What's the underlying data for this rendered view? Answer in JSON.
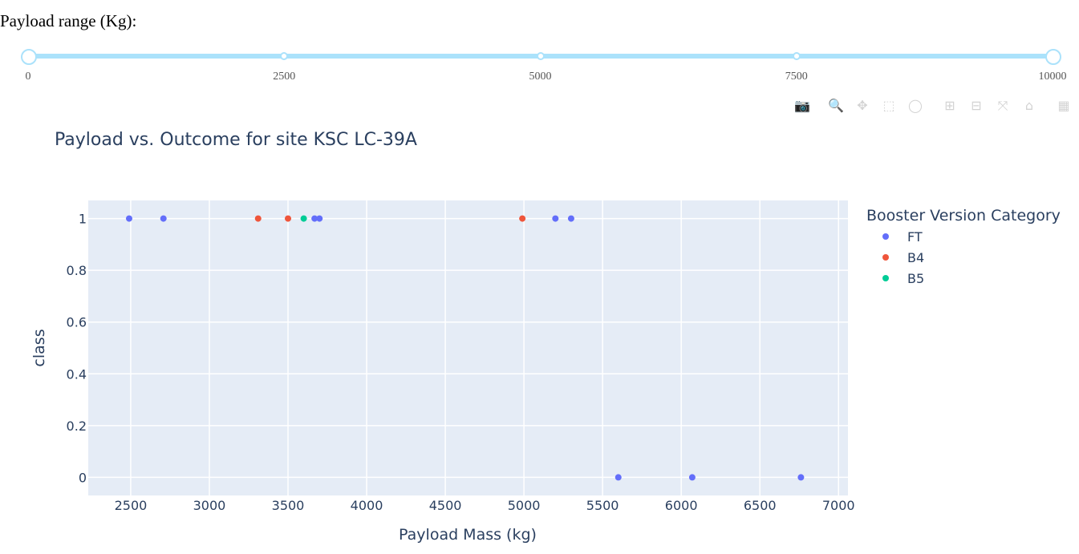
{
  "slider": {
    "label": "Payload range (Kg):",
    "min": 0,
    "max": 10000,
    "value": [
      0,
      10000
    ],
    "marks": [
      "0",
      "2500",
      "5000",
      "7500",
      "10000"
    ],
    "mark_values": [
      0,
      2500,
      5000,
      7500,
      10000
    ],
    "track_color": "#abe2fb"
  },
  "modebar": {
    "buttons": [
      {
        "name": "camera-icon",
        "glyph": "📷"
      },
      {
        "name": "zoom-icon",
        "glyph": "🔍"
      },
      {
        "name": "pan-icon",
        "glyph": "✥"
      },
      {
        "name": "box-select-icon",
        "glyph": "⬚"
      },
      {
        "name": "lasso-select-icon",
        "glyph": "◯"
      },
      {
        "name": "zoom-in-icon",
        "glyph": "⊞"
      },
      {
        "name": "zoom-out-icon",
        "glyph": "⊟"
      },
      {
        "name": "autoscale-icon",
        "glyph": "⤧"
      },
      {
        "name": "reset-axes-icon",
        "glyph": "⌂"
      },
      {
        "name": "plotly-logo-icon",
        "glyph": "▦"
      }
    ]
  },
  "chart_data": {
    "type": "scatter",
    "title": "Payload vs. Outcome for site KSC LC-39A",
    "xlabel": "Payload Mass (kg)",
    "ylabel": "class",
    "xlim": [
      2230,
      7060
    ],
    "ylim": [
      -0.07,
      1.07
    ],
    "xticks": [
      2500,
      3000,
      3500,
      4000,
      4500,
      5000,
      5500,
      6000,
      6500,
      7000
    ],
    "yticks": [
      0,
      0.2,
      0.4,
      0.6,
      0.8,
      1
    ],
    "ytick_labels": [
      "0",
      "0.2",
      "0.4",
      "0.6",
      "0.8",
      "1"
    ],
    "grid": true,
    "legend_title": "Booster Version Category",
    "legend_position": "right",
    "plot_bgcolor": "#e5ecf6",
    "series": [
      {
        "name": "FT",
        "color": "#636efa",
        "x": [
          2490,
          2708,
          3669,
          3700,
          5200,
          5300,
          5600,
          6070,
          6761
        ],
        "y": [
          1,
          1,
          1,
          1,
          1,
          1,
          0,
          0,
          0
        ]
      },
      {
        "name": "B4",
        "color": "#ef553b",
        "x": [
          3310,
          3500,
          4990
        ],
        "y": [
          1,
          1,
          1
        ]
      },
      {
        "name": "B5",
        "color": "#00cc96",
        "x": [
          3600
        ],
        "y": [
          1
        ]
      }
    ]
  }
}
